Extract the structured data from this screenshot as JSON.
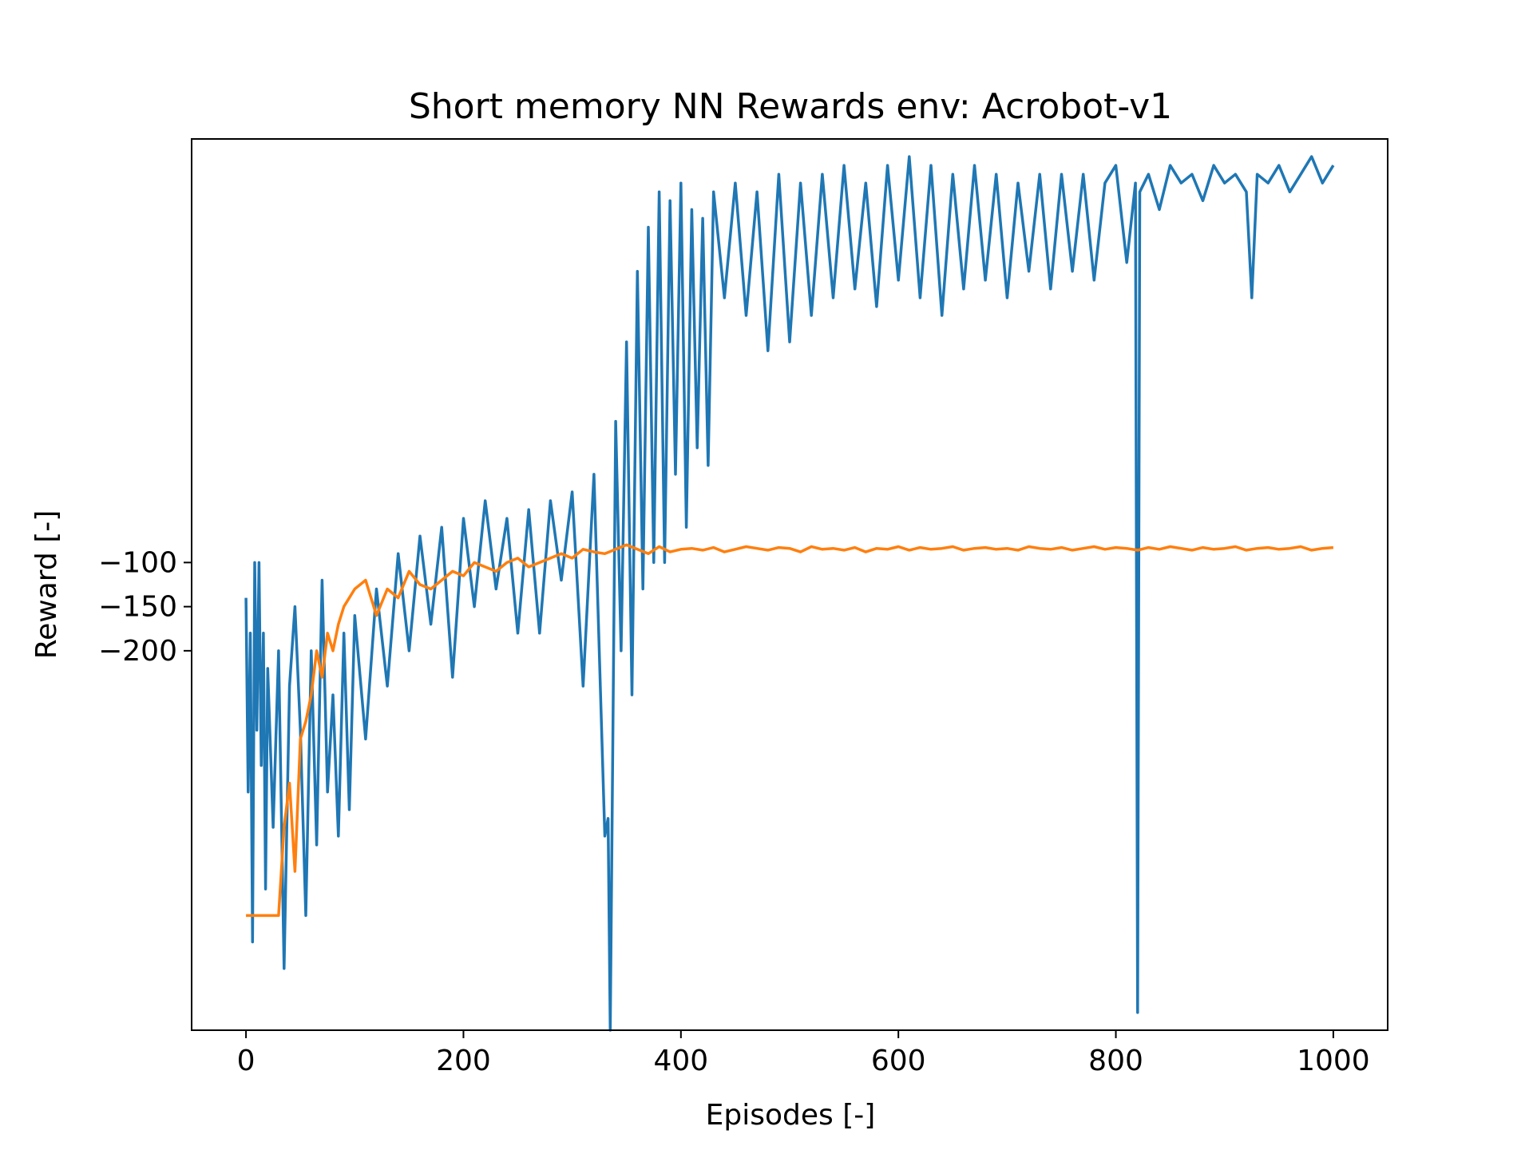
{
  "chart_data": {
    "type": "line",
    "title": "Short memory NN Rewards env: Acrobot-v1",
    "xlabel": "Episodes [-]",
    "ylabel": "Reward [-]",
    "xlim": [
      -50,
      1050
    ],
    "ylim": [
      -630,
      380
    ],
    "grid": false,
    "xticks": [
      {
        "value": 0,
        "label": "0"
      },
      {
        "value": 200,
        "label": "200"
      },
      {
        "value": 400,
        "label": "400"
      },
      {
        "value": 600,
        "label": "600"
      },
      {
        "value": 800,
        "label": "800"
      },
      {
        "value": 1000,
        "label": "1000"
      }
    ],
    "yticks": [
      {
        "value": -100,
        "label": "−100"
      },
      {
        "value": -150,
        "label": "−150"
      },
      {
        "value": -200,
        "label": "−200"
      }
    ],
    "series": [
      {
        "color": "#1f77b4",
        "x": [
          0,
          2,
          4,
          6,
          8,
          10,
          12,
          14,
          16,
          18,
          20,
          25,
          30,
          35,
          40,
          45,
          50,
          55,
          60,
          65,
          70,
          75,
          80,
          85,
          90,
          95,
          100,
          110,
          120,
          130,
          140,
          150,
          160,
          170,
          180,
          190,
          200,
          210,
          220,
          230,
          240,
          250,
          260,
          270,
          280,
          290,
          300,
          310,
          320,
          330,
          333,
          335,
          340,
          345,
          350,
          355,
          360,
          365,
          370,
          375,
          380,
          385,
          390,
          395,
          400,
          405,
          410,
          415,
          420,
          425,
          430,
          440,
          450,
          460,
          470,
          480,
          490,
          500,
          510,
          520,
          530,
          540,
          550,
          560,
          570,
          580,
          590,
          600,
          610,
          620,
          630,
          640,
          650,
          660,
          670,
          680,
          690,
          700,
          710,
          720,
          730,
          740,
          750,
          760,
          770,
          780,
          790,
          800,
          810,
          818,
          820,
          822,
          830,
          840,
          850,
          860,
          870,
          880,
          890,
          900,
          910,
          920,
          925,
          930,
          940,
          950,
          960,
          970,
          980,
          990,
          1000
        ],
        "values": [
          -140,
          -360,
          -180,
          -530,
          -100,
          -290,
          -100,
          -330,
          -180,
          -470,
          -220,
          -400,
          -200,
          -560,
          -240,
          -150,
          -290,
          -500,
          -200,
          -420,
          -120,
          -360,
          -250,
          -410,
          -180,
          -380,
          -160,
          -300,
          -130,
          -240,
          -90,
          -200,
          -70,
          -170,
          -60,
          -230,
          -50,
          -150,
          -30,
          -130,
          -50,
          -180,
          -40,
          -180,
          -30,
          -120,
          -20,
          -240,
          0,
          -410,
          -390,
          -630,
          60,
          -200,
          150,
          -250,
          230,
          -130,
          280,
          -100,
          320,
          -100,
          310,
          0,
          330,
          -60,
          300,
          30,
          290,
          10,
          320,
          200,
          330,
          180,
          320,
          140,
          340,
          150,
          330,
          180,
          340,
          200,
          350,
          210,
          330,
          190,
          350,
          220,
          360,
          200,
          350,
          180,
          340,
          210,
          350,
          220,
          340,
          200,
          330,
          230,
          340,
          210,
          340,
          230,
          340,
          220,
          330,
          350,
          240,
          330,
          -610,
          320,
          340,
          300,
          350,
          330,
          340,
          310,
          350,
          330,
          340,
          320,
          200,
          340,
          330,
          350,
          320,
          340,
          360,
          330,
          350
        ]
      },
      {
        "color": "#ff7f0e",
        "x": [
          0,
          5,
          10,
          15,
          20,
          25,
          30,
          35,
          40,
          45,
          50,
          55,
          60,
          65,
          70,
          75,
          80,
          85,
          90,
          95,
          100,
          110,
          120,
          130,
          140,
          150,
          160,
          170,
          180,
          190,
          200,
          210,
          220,
          230,
          240,
          250,
          260,
          270,
          280,
          290,
          300,
          310,
          320,
          330,
          340,
          350,
          360,
          370,
          380,
          390,
          400,
          410,
          420,
          430,
          440,
          450,
          460,
          470,
          480,
          490,
          500,
          510,
          520,
          530,
          540,
          550,
          560,
          570,
          580,
          590,
          600,
          610,
          620,
          630,
          640,
          650,
          660,
          670,
          680,
          690,
          700,
          710,
          720,
          730,
          740,
          750,
          760,
          770,
          780,
          790,
          800,
          810,
          820,
          830,
          840,
          850,
          860,
          870,
          880,
          890,
          900,
          910,
          920,
          930,
          940,
          950,
          960,
          970,
          980,
          990,
          1000
        ],
        "values": [
          -500,
          -500,
          -500,
          -500,
          -500,
          -500,
          -500,
          -400,
          -350,
          -450,
          -300,
          -280,
          -250,
          -200,
          -230,
          -180,
          -200,
          -170,
          -150,
          -140,
          -130,
          -120,
          -160,
          -130,
          -140,
          -110,
          -125,
          -130,
          -120,
          -110,
          -115,
          -100,
          -105,
          -110,
          -100,
          -95,
          -105,
          -100,
          -95,
          -90,
          -95,
          -85,
          -88,
          -90,
          -85,
          -80,
          -85,
          -90,
          -82,
          -88,
          -85,
          -84,
          -86,
          -83,
          -88,
          -85,
          -82,
          -84,
          -86,
          -83,
          -84,
          -88,
          -82,
          -85,
          -84,
          -86,
          -83,
          -88,
          -84,
          -85,
          -82,
          -86,
          -83,
          -85,
          -84,
          -82,
          -86,
          -84,
          -83,
          -85,
          -84,
          -86,
          -82,
          -84,
          -85,
          -83,
          -86,
          -84,
          -82,
          -85,
          -83,
          -84,
          -86,
          -83,
          -85,
          -82,
          -84,
          -86,
          -83,
          -85,
          -84,
          -82,
          -86,
          -84,
          -83,
          -85,
          -84,
          -82,
          -86,
          -84,
          -83
        ]
      }
    ]
  }
}
